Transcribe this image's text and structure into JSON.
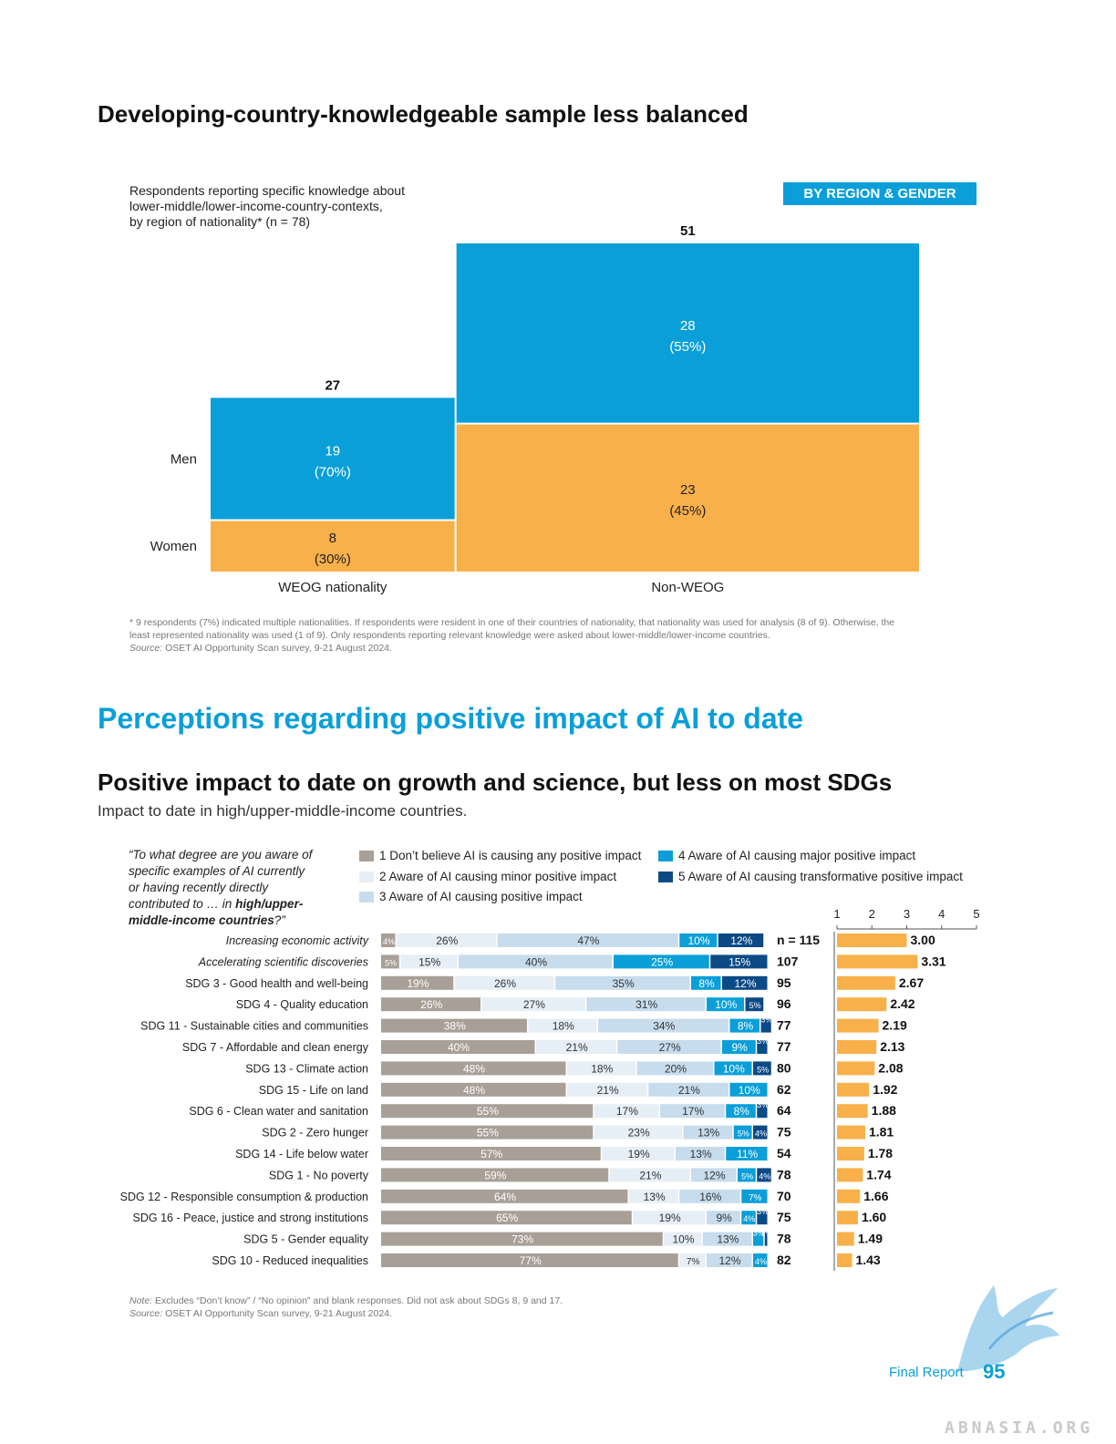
{
  "page": {
    "section1_title": "Developing-country-knowledgeable sample less balanced",
    "section2_title": "Perceptions regarding positive impact of AI to date",
    "subsection_title": "Positive impact to date on growth and science, but less on most SDGs",
    "subsection_subtitle": "Impact to date in high/upper-middle-income countries.",
    "footer_label": "Final Report",
    "footer_page": "95",
    "watermark": "ABNASIA.ORG"
  },
  "mosaic": {
    "description_lines": [
      "Respondents reporting specific knowledge about",
      "lower-middle/lower-income-country-contexts,",
      "by region of nationality* (n = 78)"
    ],
    "badge": "BY REGION & GENDER",
    "row_labels": [
      "Men",
      "Women"
    ],
    "note_line1": "* 9 respondents (7%) indicated multiple nationalities. If respondents were resident in one of their countries of nationality, that nationality was used for analysis (8 of 9). Otherwise, the",
    "note_line2": "least represented nationality was used (1 of 9). Only respondents reporting relevant knowledge were asked about lower-middle/lower-income countries.",
    "source_prefix": "Source:",
    "source_text": " OSET AI Opportunity Scan survey, 9-21 August 2024."
  },
  "stacked": {
    "question_lines": [
      "“To what degree are you aware of",
      "specific examples of AI currently",
      "or having recently directly",
      "contributed to … in ",
      "high/upper-",
      "middle-income countries",
      "?”"
    ],
    "legend": [
      {
        "label": "1 Don’t believe AI is causing any positive impact",
        "color": "#a89f97"
      },
      {
        "label": "2 Aware of AI causing minor positive impact",
        "color": "#e6eef6"
      },
      {
        "label": "3 Aware of AI causing positive impact",
        "color": "#c7dcec"
      },
      {
        "label": "4 Aware of AI causing major positive impact",
        "color": "#0a9fd9"
      },
      {
        "label": "5 Aware of AI causing transformative positive impact",
        "color": "#0c4a86"
      }
    ],
    "mean_axis_ticks": [
      "1",
      "2",
      "3",
      "4",
      "5"
    ],
    "n_prefix": "n = ",
    "note_prefix": "Note:",
    "note_text": " Excludes “Don’t know” / “No opinion” and blank responses. Did not ask about SDGs 8, 9 and 17.",
    "source_prefix": "Source:",
    "source_text": " OSET AI Opportunity Scan survey, 9-21 August 2024."
  },
  "chart_data": [
    {
      "type": "bar",
      "subtype": "mosaic",
      "categories": [
        "WEOG nationality",
        "Non-WEOG"
      ],
      "totals": [
        27,
        51
      ],
      "series": [
        {
          "name": "Men",
          "values": [
            19,
            28
          ],
          "labels": [
            "19\n(70%)",
            "28\n(55%)"
          ],
          "color": "#0a9fd9"
        },
        {
          "name": "Women",
          "values": [
            8,
            23
          ],
          "labels": [
            "8\n(30%)",
            "23\n(45%)"
          ],
          "color": "#f8b04a"
        }
      ]
    },
    {
      "type": "bar",
      "subtype": "stacked-100-horizontal",
      "categories": [
        "Increasing economic activity",
        "Accelerating scientific discoveries",
        "SDG 3 - Good health and well-being",
        "SDG 4 - Quality education",
        "SDG 11 - Sustainable cities and communities",
        "SDG 7 - Affordable and clean energy",
        "SDG 13 - Climate action",
        "SDG 15 - Life on land",
        "SDG 6 - Clean water and sanitation",
        "SDG 2 - Zero hunger",
        "SDG 14 - Life below water",
        "SDG 1 - No poverty",
        "SDG 12 - Responsible consumption & production",
        "SDG 16 - Peace, justice and strong institutions",
        "SDG 5 - Gender equality",
        "SDG 10 - Reduced inequalities"
      ],
      "italic_categories": [
        0,
        1
      ],
      "series": [
        {
          "name": "1",
          "values": [
            4,
            5,
            19,
            26,
            38,
            40,
            48,
            48,
            55,
            55,
            57,
            59,
            64,
            65,
            73,
            77
          ],
          "color": "#a89f97"
        },
        {
          "name": "2",
          "values": [
            26,
            15,
            26,
            27,
            18,
            21,
            18,
            21,
            17,
            23,
            19,
            21,
            13,
            19,
            10,
            7
          ],
          "color": "#e6eef6"
        },
        {
          "name": "3",
          "values": [
            47,
            40,
            35,
            31,
            34,
            27,
            20,
            21,
            17,
            13,
            13,
            12,
            16,
            9,
            13,
            12
          ],
          "color": "#c7dcec"
        },
        {
          "name": "4",
          "values": [
            10,
            25,
            8,
            10,
            8,
            9,
            10,
            10,
            8,
            5,
            11,
            5,
            7,
            4,
            3,
            4
          ],
          "color": "#0a9fd9"
        },
        {
          "name": "5",
          "values": [
            12,
            15,
            12,
            5,
            3,
            3,
            5,
            0,
            3,
            4,
            0,
            4,
            0,
            3,
            1,
            0
          ],
          "color": "#0c4a86"
        }
      ],
      "n": [
        115,
        107,
        95,
        96,
        77,
        77,
        80,
        62,
        64,
        75,
        54,
        78,
        70,
        75,
        78,
        82
      ]
    },
    {
      "type": "bar",
      "subtype": "mean-score-horizontal",
      "xlim": [
        1,
        5
      ],
      "values": [
        3.0,
        3.31,
        2.67,
        2.42,
        2.19,
        2.13,
        2.08,
        1.92,
        1.88,
        1.81,
        1.78,
        1.74,
        1.66,
        1.6,
        1.49,
        1.43
      ],
      "value_labels": [
        "3.00",
        "3.31",
        "2.67",
        "2.42",
        "2.19",
        "2.13",
        "2.08",
        "1.92",
        "1.88",
        "1.81",
        "1.78",
        "1.74",
        "1.66",
        "1.60",
        "1.49",
        "1.43"
      ],
      "color": "#f8b04a"
    }
  ]
}
